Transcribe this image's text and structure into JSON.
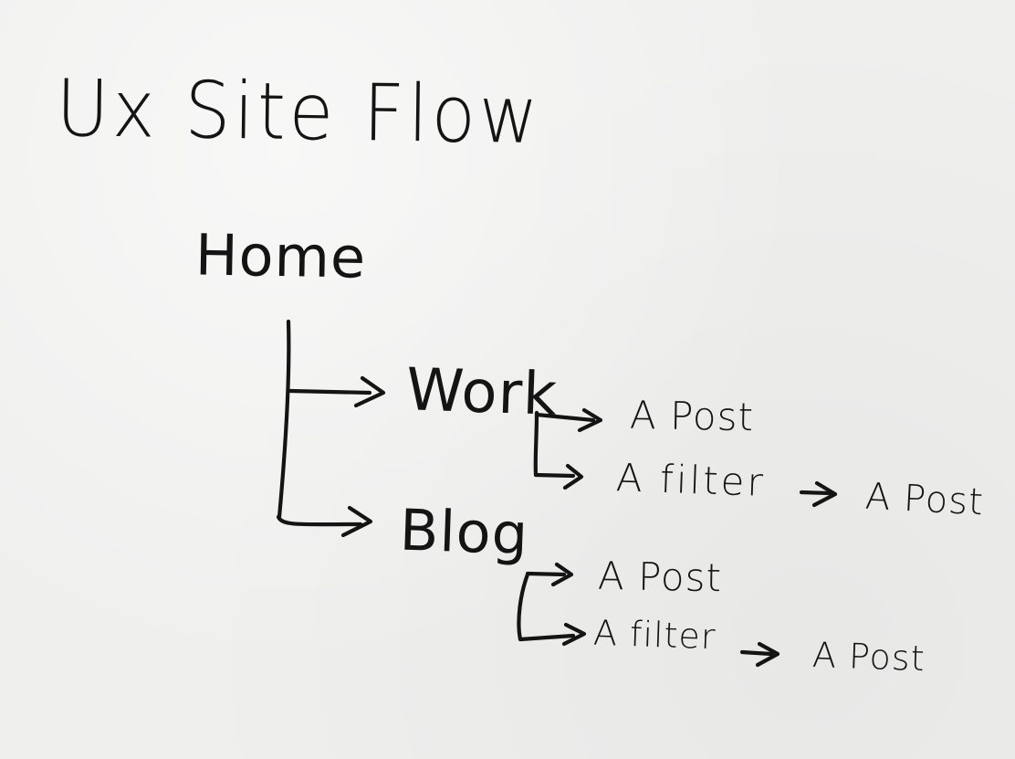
{
  "title": "Ux Site Flow",
  "nodes": {
    "home": "Home",
    "work": "Work",
    "work_post": "A Post",
    "work_filter": "A filter",
    "work_filter_post": "A Post",
    "blog": "Blog",
    "blog_post": "A Post",
    "blog_filter": "A filter",
    "blog_filter_post": "A Post"
  },
  "edges": [
    [
      "home",
      "work"
    ],
    [
      "home",
      "blog"
    ],
    [
      "work",
      "work_post"
    ],
    [
      "work",
      "work_filter"
    ],
    [
      "work_filter",
      "work_filter_post"
    ],
    [
      "blog",
      "blog_post"
    ],
    [
      "blog",
      "blog_filter"
    ],
    [
      "blog_filter",
      "blog_filter_post"
    ]
  ],
  "colors": {
    "paper": "#efefee",
    "ink": "#141414"
  }
}
